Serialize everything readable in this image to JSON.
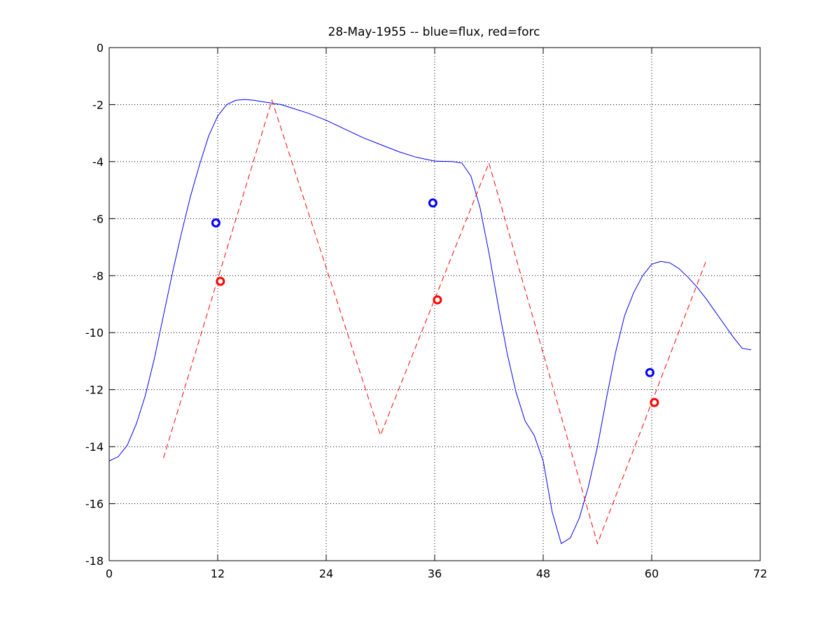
{
  "chart_data": {
    "type": "line",
    "title": "28-May-1955 -- blue=flux, red=forc",
    "xlabel": "",
    "ylabel": "",
    "xlim": [
      0,
      72
    ],
    "ylim": [
      -18,
      0
    ],
    "xticks": [
      0,
      12,
      24,
      36,
      48,
      60,
      72
    ],
    "yticks": [
      0,
      -2,
      -4,
      -6,
      -8,
      -10,
      -12,
      -14,
      -16,
      -18
    ],
    "xtick_labels": [
      "0",
      "12",
      "24",
      "36",
      "48",
      "60",
      "72"
    ],
    "ytick_labels": [
      "0",
      "-2",
      "-4",
      "-6",
      "-8",
      "-10",
      "-12",
      "-14",
      "-16",
      "-18"
    ],
    "grid": true,
    "series": [
      {
        "name": "flux",
        "color": "#0000ff",
        "style": "solid",
        "x": [
          0,
          1,
          2,
          3,
          4,
          5,
          6,
          7,
          8,
          9,
          10,
          11,
          12,
          13,
          14,
          15,
          16,
          17,
          18,
          19,
          20,
          22,
          24,
          26,
          28,
          30,
          32,
          34,
          36,
          38,
          39,
          40,
          41,
          42,
          43,
          44,
          45,
          46,
          47,
          48,
          49,
          50,
          51,
          52,
          53,
          54,
          55,
          56,
          57,
          58,
          59,
          60,
          61,
          62,
          63,
          64,
          65,
          66,
          67,
          68,
          69,
          70,
          71
        ],
        "y": [
          -14.5,
          -14.35,
          -13.95,
          -13.2,
          -12.2,
          -10.9,
          -9.4,
          -7.9,
          -6.5,
          -5.2,
          -4.1,
          -3.1,
          -2.4,
          -2.0,
          -1.85,
          -1.82,
          -1.85,
          -1.9,
          -1.95,
          -2.0,
          -2.1,
          -2.3,
          -2.55,
          -2.85,
          -3.15,
          -3.4,
          -3.65,
          -3.85,
          -3.98,
          -4.0,
          -4.05,
          -4.5,
          -5.6,
          -7.2,
          -9.0,
          -10.7,
          -12.1,
          -13.1,
          -13.6,
          -14.5,
          -16.3,
          -17.4,
          -17.2,
          -16.5,
          -15.4,
          -14.0,
          -12.3,
          -10.7,
          -9.4,
          -8.6,
          -8.0,
          -7.6,
          -7.5,
          -7.55,
          -7.75,
          -8.05,
          -8.4,
          -8.8,
          -9.25,
          -9.7,
          -10.15,
          -10.55,
          -10.6
        ]
      },
      {
        "name": "forc",
        "color": "#ff0000",
        "style": "dashed",
        "x": [
          6,
          18,
          30,
          42,
          54,
          66
        ],
        "y": [
          -14.4,
          -1.85,
          -13.6,
          -4.05,
          -17.4,
          -7.5
        ]
      }
    ],
    "markers": [
      {
        "name": "flux",
        "color": "#0000ff",
        "x": 11.8,
        "y": -6.15
      },
      {
        "name": "flux",
        "color": "#0000ff",
        "x": 35.8,
        "y": -5.45
      },
      {
        "name": "flux",
        "color": "#0000ff",
        "x": 59.8,
        "y": -11.4
      },
      {
        "name": "forc",
        "color": "#ff0000",
        "x": 12.3,
        "y": -8.2
      },
      {
        "name": "forc",
        "color": "#ff0000",
        "x": 36.3,
        "y": -8.85
      },
      {
        "name": "forc",
        "color": "#ff0000",
        "x": 60.3,
        "y": -12.45
      }
    ]
  }
}
